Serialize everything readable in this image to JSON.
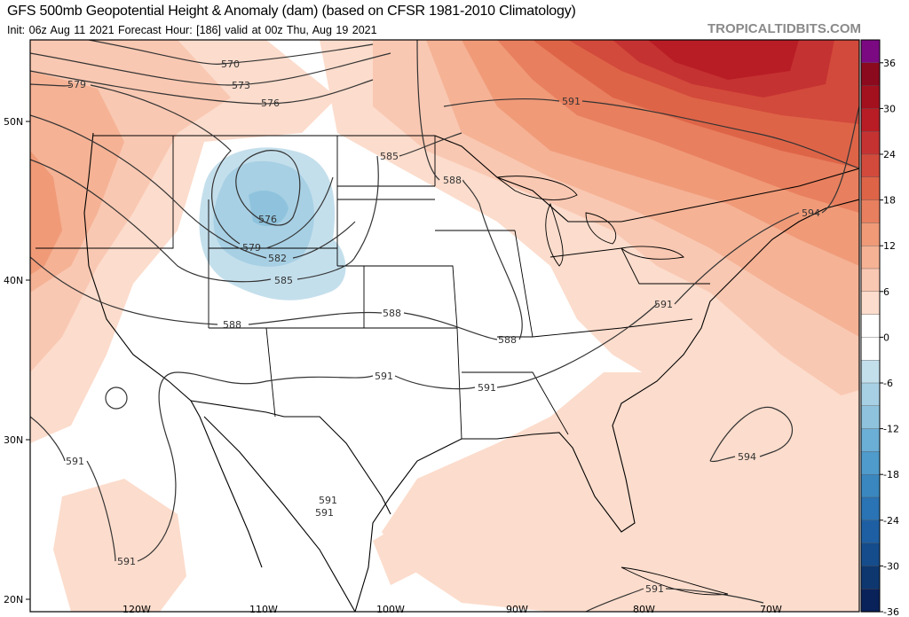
{
  "header": {
    "title": "GFS 500mb Geopotential Height & Anomaly (dam) (based on CFSR 1981-2010 Climatology)",
    "subtitle": "Init: 06z Aug 11 2021   Forecast Hour: [186]   valid at 00z Thu, Aug 19 2021",
    "brand": "TROPICALTIDBITS.COM"
  },
  "axes": {
    "lat_labels": [
      "50N",
      "40N",
      "30N",
      "20N"
    ],
    "lon_labels": [
      "120W",
      "110W",
      "100W",
      "90W",
      "80W",
      "70W"
    ]
  },
  "colorbar": {
    "ticks": [
      "36",
      "30",
      "24",
      "18",
      "12",
      "6",
      "0",
      "-6",
      "-12",
      "-18",
      "-24",
      "-30",
      "-36"
    ],
    "colors": [
      "#7b0a82",
      "#8c0a1e",
      "#a3111f",
      "#b81d26",
      "#c53232",
      "#d24a3b",
      "#de6448",
      "#e87f5e",
      "#f09a78",
      "#f5b295",
      "#f9c8b2",
      "#fcdccc",
      "#ffffff",
      "#ffffff",
      "#c4dfec",
      "#a7d0e4",
      "#8fc3dd",
      "#6baed6",
      "#4f9bcb",
      "#3a87bf",
      "#2a73b4",
      "#1e5fa3",
      "#154c8c",
      "#0e3770",
      "#0a225a"
    ]
  },
  "contour_labels": [
    "570",
    "573",
    "576",
    "579",
    "576",
    "579",
    "582",
    "585",
    "585",
    "588",
    "588",
    "588",
    "588",
    "591",
    "591",
    "591",
    "591",
    "594",
    "594",
    "591",
    "591",
    "591",
    "591",
    "591"
  ]
}
